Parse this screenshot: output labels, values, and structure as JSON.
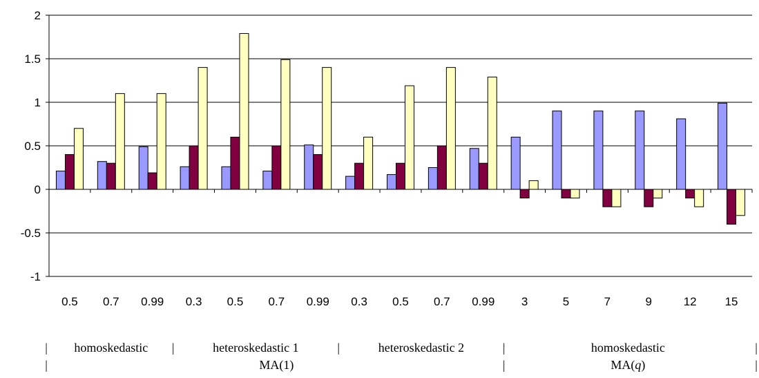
{
  "chart_data": {
    "type": "bar",
    "categories": [
      "0.5",
      "0.7",
      "0.99",
      "0.3",
      "0.5",
      "0.7",
      "0.99",
      "0.3",
      "0.5",
      "0.7",
      "0.99",
      "3",
      "5",
      "7",
      "9",
      "12",
      "15"
    ],
    "series": [
      {
        "values": [
          0.21,
          0.32,
          0.49,
          0.26,
          0.26,
          0.21,
          0.51,
          0.15,
          0.17,
          0.25,
          0.47,
          0.6,
          0.9,
          0.9,
          0.9,
          0.81,
          0.99
        ]
      },
      {
        "values": [
          0.4,
          0.3,
          0.19,
          0.5,
          0.6,
          0.5,
          0.4,
          0.3,
          0.3,
          0.5,
          0.3,
          -0.1,
          -0.1,
          -0.2,
          -0.2,
          -0.1,
          -0.4
        ]
      },
      {
        "values": [
          0.7,
          1.1,
          1.1,
          1.4,
          1.79,
          1.49,
          1.4,
          0.6,
          1.19,
          1.4,
          1.29,
          0.1,
          -0.1,
          -0.2,
          -0.1,
          -0.2,
          -0.3
        ]
      }
    ],
    "colors": [
      "#9999ff",
      "#800040",
      "#ffffc0"
    ],
    "yticks": [
      "2",
      "1.5",
      "1",
      "0.5",
      "0",
      "-0.5",
      "-1"
    ],
    "ylim": [
      -1,
      2
    ],
    "grid": true,
    "group_labels_row1": [
      {
        "text": "homoskedastic",
        "categories": [
          0,
          2
        ]
      },
      {
        "text": "heteroskedastic 1",
        "categories": [
          3,
          6
        ]
      },
      {
        "text": "heteroskedastic  2",
        "categories": [
          7,
          10
        ]
      },
      {
        "text": "homoskedastic",
        "categories": [
          11,
          16
        ]
      }
    ],
    "group_labels_row2": [
      {
        "text": "MA(1)",
        "categories": [
          0,
          10
        ]
      },
      {
        "text_prefix": "MA(",
        "text_var": "q",
        "text_suffix": ")",
        "categories": [
          11,
          16
        ]
      }
    ],
    "separator": "|"
  }
}
